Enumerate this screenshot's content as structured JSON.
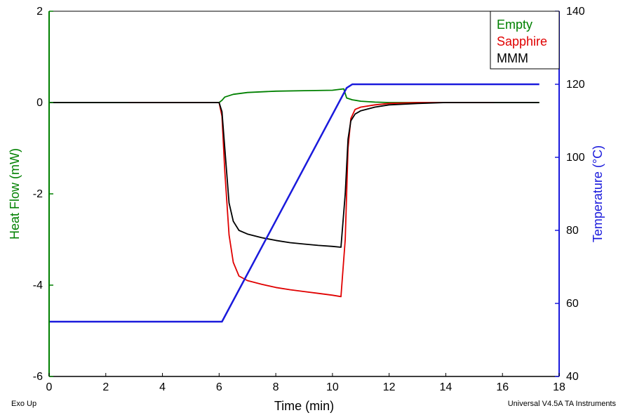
{
  "chart_data": {
    "type": "line",
    "title": "",
    "xlabel": "Time (min)",
    "ylabel_left": "Heat Flow (mW)",
    "ylabel_right": "Temperature (°C)",
    "xlim": [
      0,
      18
    ],
    "ylim_left": [
      -6,
      2
    ],
    "ylim_right": [
      40,
      140
    ],
    "x_ticks": [
      0,
      2,
      4,
      6,
      8,
      10,
      12,
      14,
      16,
      18
    ],
    "y_left_ticks": [
      -6,
      -4,
      -2,
      0,
      2
    ],
    "y_right_ticks": [
      40,
      60,
      80,
      100,
      120,
      140
    ],
    "grid": false,
    "legend_position": "top-right",
    "colors": {
      "left_axis": "#008000",
      "right_axis": "#1a1adc"
    },
    "series": [
      {
        "name": "Empty",
        "axis": "left",
        "color": "#008000",
        "x": [
          0,
          6.0,
          6.1,
          6.2,
          6.5,
          7.0,
          8.0,
          9.0,
          10.0,
          10.4,
          10.5,
          10.7,
          11.0,
          11.5,
          12.0,
          13.0,
          14.0,
          15.0,
          16.0,
          17.3
        ],
        "y": [
          0,
          0,
          0.05,
          0.12,
          0.18,
          0.22,
          0.25,
          0.26,
          0.27,
          0.3,
          0.1,
          0.06,
          0.03,
          0.01,
          0,
          0,
          0,
          0,
          0,
          0
        ]
      },
      {
        "name": "Sapphire",
        "axis": "left",
        "color": "#e00000",
        "x": [
          2.8,
          6.0,
          6.1,
          6.2,
          6.35,
          6.5,
          6.7,
          7.0,
          7.5,
          8.0,
          8.5,
          9.0,
          9.5,
          10.0,
          10.3,
          10.45,
          10.55,
          10.65,
          10.8,
          11.0,
          11.5,
          12.0,
          13.0,
          14.0,
          15.7
        ],
        "y": [
          0,
          0,
          -0.3,
          -1.5,
          -2.9,
          -3.5,
          -3.8,
          -3.9,
          -3.98,
          -4.05,
          -4.1,
          -4.14,
          -4.18,
          -4.22,
          -4.25,
          -3.0,
          -1.0,
          -0.35,
          -0.15,
          -0.1,
          -0.05,
          -0.02,
          0,
          0,
          0
        ]
      },
      {
        "name": "MMM",
        "axis": "left",
        "color": "#000000",
        "x": [
          0,
          6.0,
          6.1,
          6.2,
          6.35,
          6.5,
          6.7,
          7.0,
          7.5,
          8.0,
          8.5,
          9.0,
          9.5,
          10.0,
          10.3,
          10.45,
          10.55,
          10.65,
          10.8,
          11.0,
          11.5,
          12.0,
          13.0,
          14.0,
          15.0,
          16.0,
          17.3
        ],
        "y": [
          0,
          0,
          -0.2,
          -1.0,
          -2.2,
          -2.6,
          -2.8,
          -2.88,
          -2.96,
          -3.02,
          -3.07,
          -3.1,
          -3.13,
          -3.15,
          -3.17,
          -2.0,
          -0.8,
          -0.4,
          -0.25,
          -0.18,
          -0.1,
          -0.05,
          -0.02,
          0,
          0,
          0,
          0
        ]
      },
      {
        "name": "Temperature",
        "axis": "right",
        "color": "#1a1adc",
        "x": [
          0,
          6.1,
          10.5,
          10.7,
          11.0,
          17.3
        ],
        "y": [
          55,
          55,
          119,
          120,
          120,
          120
        ]
      }
    ],
    "legend": [
      {
        "label": "Empty",
        "color": "#008000"
      },
      {
        "label": "Sapphire",
        "color": "#e00000"
      },
      {
        "label": "MMM",
        "color": "#000000"
      }
    ],
    "annotations": {
      "bottom_left": "Exo Up",
      "bottom_right": "Universal V4.5A TA Instruments"
    }
  }
}
